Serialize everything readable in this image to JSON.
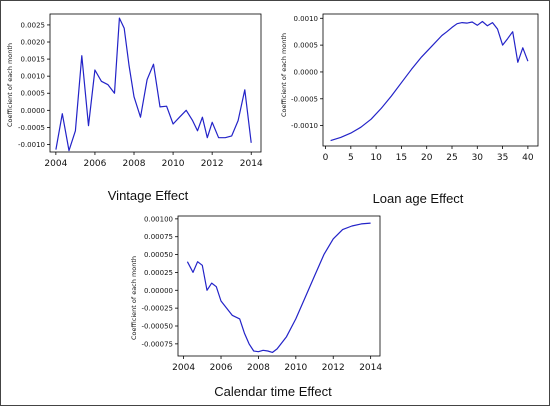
{
  "chart_data": [
    {
      "id": "vintage",
      "type": "line",
      "title": "Vintage Effect",
      "xlabel": "",
      "ylabel": "Coefficient of each month",
      "xlim": [
        2003.7,
        2014.5
      ],
      "ylim": [
        -0.00122,
        0.00282
      ],
      "xticks": [
        2004,
        2006,
        2008,
        2010,
        2012,
        2014
      ],
      "xtick_labels": [
        "2004",
        "2006",
        "2008",
        "2010",
        "2012",
        "2014"
      ],
      "yticks": [
        -0.001,
        -0.0005,
        0.0,
        0.0005,
        0.001,
        0.0015,
        0.002,
        0.0025
      ],
      "ytick_labels": [
        "-0.0010",
        "-0.0005",
        "0.0000",
        "0.0005",
        "0.0010",
        "0.0015",
        "0.0020",
        "0.0025"
      ],
      "series": [
        {
          "color": "#2323c8",
          "x": [
            2004.0,
            2004.33,
            2004.67,
            2005.0,
            2005.33,
            2005.67,
            2006.0,
            2006.33,
            2006.67,
            2007.0,
            2007.25,
            2007.5,
            2007.75,
            2008.0,
            2008.33,
            2008.67,
            2009.0,
            2009.33,
            2009.67,
            2010.0,
            2010.33,
            2010.67,
            2011.0,
            2011.25,
            2011.5,
            2011.75,
            2012.0,
            2012.33,
            2012.67,
            2013.0,
            2013.33,
            2013.67,
            2014.0
          ],
          "y": [
            -0.00115,
            -0.0001,
            -0.00118,
            -0.0006,
            0.0016,
            -0.00045,
            0.00118,
            0.00085,
            0.00075,
            0.0005,
            0.0027,
            0.0024,
            0.0013,
            0.0004,
            -0.0002,
            0.0009,
            0.00135,
            0.0001,
            0.00012,
            -0.0004,
            -0.0002,
            0.0,
            -0.0003,
            -0.0006,
            -0.0002,
            -0.0008,
            -0.00035,
            -0.0008,
            -0.0008,
            -0.00075,
            -0.0003,
            0.0006,
            -0.00095
          ]
        }
      ]
    },
    {
      "id": "loan_age",
      "type": "line",
      "title": "Loan age Effect",
      "xlabel": "",
      "ylabel": "Coefficient of each month",
      "xlim": [
        -0.5,
        42
      ],
      "ylim": [
        -0.00138,
        0.00108
      ],
      "xticks": [
        0,
        5,
        10,
        15,
        20,
        25,
        30,
        35,
        40
      ],
      "xtick_labels": [
        "0",
        "5",
        "10",
        "15",
        "20",
        "25",
        "30",
        "35",
        "40"
      ],
      "yticks": [
        -0.001,
        -0.0005,
        0.0,
        0.0005,
        0.001
      ],
      "ytick_labels": [
        "-0.0010",
        "-0.0005",
        "0.0000",
        "0.0005",
        "0.0010"
      ],
      "series": [
        {
          "color": "#2323c8",
          "x": [
            1,
            3,
            5,
            7,
            9,
            11,
            13,
            15,
            17,
            19,
            21,
            23,
            24,
            25,
            26,
            27,
            28,
            29,
            30,
            31,
            32,
            33,
            34,
            35,
            36,
            37,
            38,
            39,
            40
          ],
          "y": [
            -0.00128,
            -0.00122,
            -0.00114,
            -0.00103,
            -0.00088,
            -0.00068,
            -0.00045,
            -0.0002,
            5e-05,
            0.00028,
            0.00048,
            0.00068,
            0.00075,
            0.00083,
            0.0009,
            0.00092,
            0.00091,
            0.00093,
            0.00087,
            0.00094,
            0.00086,
            0.00092,
            0.0008,
            0.0005,
            0.00062,
            0.00075,
            0.00018,
            0.00045,
            0.0002
          ]
        }
      ]
    },
    {
      "id": "calendar",
      "type": "line",
      "title": "Calendar time Effect",
      "xlabel": "",
      "ylabel": "Coefficient of each month",
      "xlim": [
        2003.7,
        2014.5
      ],
      "ylim": [
        -0.00092,
        0.00104
      ],
      "xticks": [
        2004,
        2006,
        2008,
        2010,
        2012,
        2014
      ],
      "xtick_labels": [
        "2004",
        "2006",
        "2008",
        "2010",
        "2012",
        "2014"
      ],
      "yticks": [
        -0.00075,
        -0.0005,
        -0.00025,
        0.0,
        0.00025,
        0.0005,
        0.00075,
        0.001
      ],
      "ytick_labels": [
        "-0.00075",
        "-0.00050",
        "-0.00025",
        "0.00000",
        "0.00025",
        "0.00050",
        "0.00075",
        "0.00100"
      ],
      "series": [
        {
          "color": "#2323c8",
          "x": [
            2004.2,
            2004.5,
            2004.75,
            2005.0,
            2005.25,
            2005.5,
            2005.75,
            2006.0,
            2006.3,
            2006.6,
            2007.0,
            2007.25,
            2007.5,
            2007.75,
            2008.0,
            2008.25,
            2008.5,
            2008.75,
            2009.0,
            2009.5,
            2010.0,
            2010.5,
            2011.0,
            2011.5,
            2012.0,
            2012.5,
            2013.0,
            2013.5,
            2014.0
          ],
          "y": [
            0.0004,
            0.00025,
            0.0004,
            0.00035,
            0.0,
            0.0001,
            5e-05,
            -0.00015,
            -0.00025,
            -0.00035,
            -0.0004,
            -0.0006,
            -0.00075,
            -0.00085,
            -0.00086,
            -0.00084,
            -0.00085,
            -0.00087,
            -0.00082,
            -0.00065,
            -0.0004,
            -0.0001,
            0.0002,
            0.0005,
            0.00072,
            0.00085,
            0.0009,
            0.00093,
            0.00094
          ]
        }
      ]
    }
  ]
}
